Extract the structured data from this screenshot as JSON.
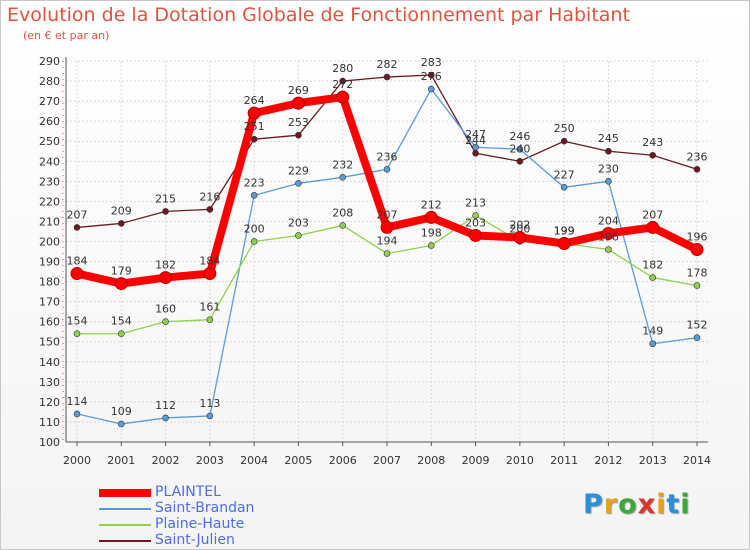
{
  "title": "Evolution de la Dotation Globale de Fonctionnement par Habitant",
  "subtitle": "(en € et par an)",
  "logo": {
    "letters": [
      "P",
      "r",
      "o",
      "x",
      "i",
      "t",
      "i"
    ],
    "colors": [
      "#2a8fd4",
      "#e8a21a",
      "#3aa83a",
      "#d6362b",
      "#e8a21a",
      "#2a8fd4",
      "#3aa83a"
    ]
  },
  "chart_data": {
    "type": "line",
    "title": "Evolution de la Dotation Globale de Fonctionnement par Habitant",
    "subtitle": "(en € et par an)",
    "categories": [
      "2000",
      "2001",
      "2002",
      "2003",
      "2004",
      "2005",
      "2006",
      "2007",
      "2008",
      "2009",
      "2010",
      "2011",
      "2012",
      "2013",
      "2014"
    ],
    "ylim": [
      100,
      290
    ],
    "yticks": [
      100,
      110,
      120,
      130,
      140,
      150,
      160,
      170,
      180,
      190,
      200,
      210,
      220,
      230,
      240,
      250,
      260,
      270,
      280,
      290
    ],
    "grid": true,
    "legend": "bottom-left",
    "series": [
      {
        "name": "Saint-Julien",
        "color": "#6b1a24",
        "values": [
          207,
          209,
          215,
          216,
          251,
          253,
          280,
          282,
          283,
          244,
          240,
          250,
          245,
          243,
          236
        ],
        "labels": [
          "207",
          "209",
          "215",
          "216",
          "251",
          "253",
          "280",
          "282",
          "283",
          "244",
          "240",
          "250",
          "245",
          "243",
          "236"
        ]
      },
      {
        "name": "Saint-Brandan",
        "color": "#5b9bd5",
        "values": [
          114,
          109,
          112,
          113,
          223,
          229,
          232,
          236,
          276,
          247,
          246,
          227,
          230,
          149,
          152
        ],
        "labels": [
          "114",
          "109",
          "112",
          "113",
          "223",
          "229",
          "232",
          "236",
          "276",
          "247",
          "246",
          "227",
          "230",
          "149",
          "152"
        ]
      },
      {
        "name": "Plaine-Haute",
        "color": "#8fd14f",
        "values": [
          154,
          154,
          160,
          161,
          200,
          203,
          208,
          194,
          198,
          213,
          200,
          199,
          196,
          182,
          178
        ],
        "labels": [
          "154",
          "154",
          "160",
          "161",
          "200",
          "203",
          "208",
          "194",
          "198",
          "213",
          "200",
          "199",
          "196",
          "182",
          "178"
        ]
      },
      {
        "name": "PLAINTEL",
        "color": "#ff0000",
        "values": [
          184,
          179,
          182,
          184,
          264,
          269,
          272,
          207,
          212,
          203,
          202,
          199,
          204,
          207,
          196
        ],
        "labels": [
          "184",
          "179",
          "182",
          "184",
          "264",
          "269",
          "272",
          "207",
          "212",
          "203",
          "202",
          "199",
          "204",
          "207",
          "196"
        ]
      }
    ],
    "legend_order": [
      "PLAINTEL",
      "Saint-Brandan",
      "Plaine-Haute",
      "Saint-Julien"
    ]
  }
}
